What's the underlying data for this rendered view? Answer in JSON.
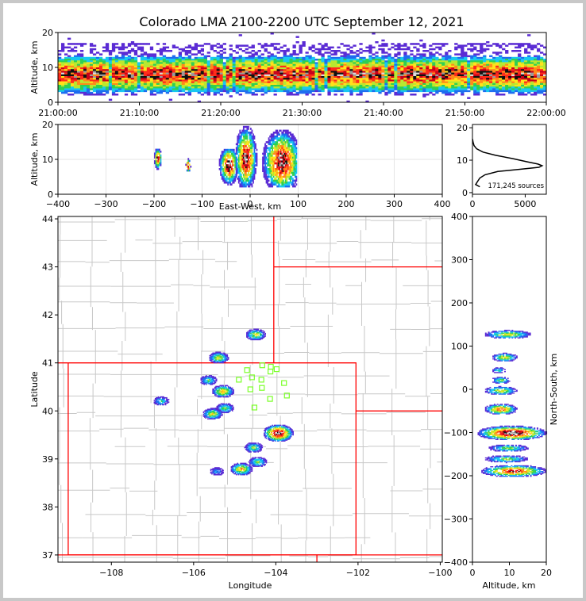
{
  "figure": {
    "title": "Colorado LMA 2100-2200 UTC September 12, 2021",
    "source_count_label": "171,245 sources"
  },
  "colors": {
    "density_scale": [
      "#5a2bd4",
      "#1e6cf0",
      "#18c8f0",
      "#2ecf52",
      "#b8e830",
      "#ffe21a",
      "#ff8a1a",
      "#ff2a1a",
      "#c8001a",
      "#101010",
      "#9a9a9a",
      "#dcdcdc"
    ],
    "state_border": "#ff0000",
    "county_border": "#c8c8c8",
    "station_marker": "#7cff2a"
  },
  "chart_data": [
    {
      "id": "time-height",
      "type": "heatmap",
      "xlabel": "",
      "ylabel": "Altitude, km",
      "x_ticks": [
        "21:00:00",
        "21:10:00",
        "21:20:00",
        "21:30:00",
        "21:40:00",
        "21:50:00",
        "22:00:00"
      ],
      "y_ticks": [
        0,
        10,
        20
      ],
      "xlim": [
        "21:00:00",
        "22:00:00"
      ],
      "ylim": [
        0,
        20
      ],
      "description_band": {
        "altitude_min_km": 2,
        "altitude_max_km": 17,
        "altitude_core_km": 8
      }
    },
    {
      "id": "east-west-height",
      "type": "heatmap",
      "xlabel": "East-West, km",
      "ylabel": "Altitude, km",
      "x_ticks": [
        -400,
        -300,
        -200,
        -100,
        0,
        100,
        200,
        300,
        400
      ],
      "y_ticks": [
        0,
        10,
        20
      ],
      "xlim": [
        -400,
        400
      ],
      "ylim": [
        0,
        20
      ],
      "clusters": [
        {
          "x_min": -70,
          "x_max": -30,
          "y_min": 2,
          "y_max": 13,
          "core_x": -45,
          "core_y": 8
        },
        {
          "x_min": -30,
          "x_max": 15,
          "y_min": 2,
          "y_max": 20,
          "core_x": -10,
          "core_y": 10
        },
        {
          "x_min": 15,
          "x_max": 95,
          "y_min": 2,
          "y_max": 20,
          "core_x": 65,
          "core_y": 9
        },
        {
          "x_min": -200,
          "x_max": -185,
          "y_min": 7,
          "y_max": 13,
          "core_x": -193,
          "core_y": 10
        },
        {
          "x_min": -135,
          "x_max": -125,
          "y_min": 6,
          "y_max": 10,
          "core_x": -130,
          "core_y": 8
        }
      ]
    },
    {
      "id": "altitude-histogram",
      "type": "line",
      "xlabel": "",
      "ylabel": "",
      "x_ticks": [
        0,
        5000
      ],
      "y_ticks": [
        0,
        10,
        20
      ],
      "xlim": [
        0,
        7000
      ],
      "ylim": [
        -0.5,
        21
      ],
      "series": [
        {
          "altitude_km": [
            1.8,
            2.5,
            3.5,
            4.5,
            5.5,
            6.5,
            7.2,
            7.8,
            8.3,
            8.8,
            9.5,
            10.5,
            11.5,
            12.5,
            13.5,
            14.5,
            15.5,
            16.5
          ],
          "count": [
            700,
            300,
            500,
            700,
            1200,
            2400,
            4500,
            6300,
            6600,
            6200,
            5200,
            3800,
            2200,
            1000,
            400,
            150,
            60,
            10
          ]
        }
      ]
    },
    {
      "id": "plan-view-map",
      "type": "scatter",
      "xlabel": "Longitude",
      "ylabel": "Latitude",
      "x_ticks": [
        -108,
        -106,
        -104,
        -102,
        -100
      ],
      "y_ticks": [
        37,
        38,
        39,
        40,
        41,
        42,
        43,
        44
      ],
      "xlim": [
        -109.3,
        -99.95
      ],
      "ylim": [
        36.85,
        44.05
      ],
      "stations": [
        [
          -104.7,
          40.85
        ],
        [
          -104.9,
          40.65
        ],
        [
          -104.58,
          40.7
        ],
        [
          -104.35,
          40.65
        ],
        [
          -104.33,
          40.95
        ],
        [
          -104.13,
          40.82
        ],
        [
          -103.98,
          40.87
        ],
        [
          -103.8,
          40.58
        ],
        [
          -104.62,
          40.45
        ],
        [
          -104.34,
          40.48
        ],
        [
          -103.73,
          40.32
        ],
        [
          -104.14,
          40.25
        ],
        [
          -104.52,
          40.07
        ],
        [
          -104.12,
          40.92
        ]
      ],
      "storm_clusters": [
        {
          "lon": -104.5,
          "lat": 41.6,
          "intensity": 0.5
        },
        {
          "lon": -105.4,
          "lat": 41.12,
          "intensity": 0.5
        },
        {
          "lon": -105.65,
          "lat": 40.65,
          "intensity": 0.35
        },
        {
          "lon": -105.3,
          "lat": 40.42,
          "intensity": 0.6
        },
        {
          "lon": -105.25,
          "lat": 40.07,
          "intensity": 0.4
        },
        {
          "lon": -105.55,
          "lat": 39.95,
          "intensity": 0.5
        },
        {
          "lon": -103.95,
          "lat": 39.55,
          "intensity": 1.0
        },
        {
          "lon": -104.55,
          "lat": 39.25,
          "intensity": 0.4
        },
        {
          "lon": -104.45,
          "lat": 38.95,
          "intensity": 0.4
        },
        {
          "lon": -104.85,
          "lat": 38.8,
          "intensity": 0.6
        },
        {
          "lon": -106.8,
          "lat": 40.22,
          "intensity": 0.3
        },
        {
          "lon": -105.45,
          "lat": 38.75,
          "intensity": 0.2
        }
      ]
    },
    {
      "id": "north-south-height",
      "type": "heatmap",
      "xlabel": "Altitude, km",
      "ylabel": "North-South, km",
      "x_ticks": [
        0,
        10,
        20
      ],
      "y_ticks": [
        -400,
        -300,
        -200,
        -100,
        0,
        100,
        200,
        300,
        400
      ],
      "xlim": [
        0,
        20
      ],
      "ylim": [
        -400,
        400
      ],
      "clusters": [
        {
          "y": 128,
          "x_min": 3,
          "x_max": 16,
          "intensity": 0.5
        },
        {
          "y": 75,
          "x_min": 5,
          "x_max": 12,
          "intensity": 0.5
        },
        {
          "y": 45,
          "x_min": 5,
          "x_max": 9,
          "intensity": 0.3
        },
        {
          "y": 22,
          "x_min": 5,
          "x_max": 10,
          "intensity": 0.4
        },
        {
          "y": -2,
          "x_min": 3,
          "x_max": 12,
          "intensity": 0.5
        },
        {
          "y": -45,
          "x_min": 3,
          "x_max": 12,
          "intensity": 0.7
        },
        {
          "y": -100,
          "x_min": 1,
          "x_max": 20,
          "intensity": 1.0
        },
        {
          "y": -135,
          "x_min": 4,
          "x_max": 15,
          "intensity": 0.4
        },
        {
          "y": -160,
          "x_min": 3,
          "x_max": 15,
          "intensity": 0.4
        },
        {
          "y": -188,
          "x_min": 2,
          "x_max": 20,
          "intensity": 0.8
        }
      ]
    }
  ]
}
